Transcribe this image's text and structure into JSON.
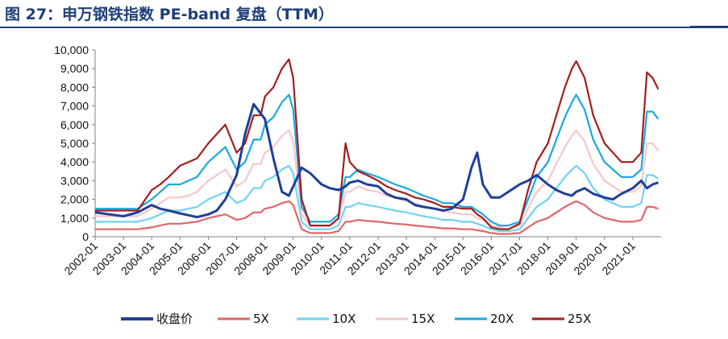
{
  "figure": {
    "title": "图 27：申万钢铁指数 PE-band 复盘（TTM）"
  },
  "chart_data": {
    "type": "line",
    "title": "图 27：申万钢铁指数 PE-band 复盘（TTM）",
    "xlabel": "",
    "ylabel": "",
    "ylim": [
      0,
      10000
    ],
    "yticks": [
      "0",
      "1,000",
      "2,000",
      "3,000",
      "4,000",
      "5,000",
      "6,000",
      "7,000",
      "8,000",
      "9,000",
      "10,000"
    ],
    "xticks": [
      "2002-01",
      "2003-01",
      "2004-01",
      "2005-01",
      "2006-01",
      "2007-01",
      "2008-01",
      "2009-01",
      "2010-01",
      "2011-01",
      "2012-01",
      "2013-01",
      "2014-01",
      "2015-01",
      "2016-01",
      "2017-01",
      "2018-01",
      "2019-01",
      "2020-01",
      "2021-01"
    ],
    "grid": false,
    "legend_position": "bottom",
    "x": [
      2002.0,
      2002.5,
      2003.0,
      2003.5,
      2004.0,
      2004.3,
      2004.6,
      2005.0,
      2005.3,
      2005.6,
      2006.0,
      2006.3,
      2006.6,
      2007.0,
      2007.3,
      2007.6,
      2007.85,
      2008.0,
      2008.3,
      2008.6,
      2008.85,
      2009.0,
      2009.3,
      2009.6,
      2010.0,
      2010.3,
      2010.6,
      2010.85,
      2011.0,
      2011.3,
      2011.6,
      2012.0,
      2012.3,
      2012.6,
      2013.0,
      2013.3,
      2013.6,
      2014.0,
      2014.3,
      2014.6,
      2015.0,
      2015.3,
      2015.5,
      2015.7,
      2016.0,
      2016.3,
      2016.6,
      2017.0,
      2017.3,
      2017.6,
      2018.0,
      2018.3,
      2018.6,
      2018.85,
      2019.0,
      2019.3,
      2019.6,
      2020.0,
      2020.3,
      2020.6,
      2021.0,
      2021.3,
      2021.5,
      2021.7,
      2021.9
    ],
    "series": [
      {
        "name": "收盘价",
        "color": "#1f3f99",
        "values": [
          1300,
          1200,
          1100,
          1300,
          1700,
          1500,
          1400,
          1250,
          1150,
          1050,
          1200,
          1400,
          2000,
          3300,
          5500,
          7100,
          6600,
          6300,
          4200,
          2400,
          2200,
          2700,
          3700,
          3400,
          2800,
          2600,
          2500,
          2700,
          2900,
          3000,
          2800,
          2700,
          2300,
          2100,
          2000,
          1700,
          1600,
          1500,
          1400,
          1500,
          2000,
          3700,
          4500,
          2800,
          2100,
          2100,
          2400,
          2800,
          3000,
          3300,
          2800,
          2500,
          2300,
          2200,
          2400,
          2600,
          2300,
          2100,
          2000,
          2300,
          2600,
          3000,
          2600,
          2800,
          2900
        ]
      },
      {
        "name": "5X",
        "color": "#e06666",
        "values": [
          400,
          400,
          400,
          400,
          500,
          600,
          700,
          700,
          750,
          800,
          1000,
          1100,
          1200,
          900,
          1000,
          1300,
          1300,
          1500,
          1600,
          1800,
          1900,
          1700,
          400,
          200,
          200,
          200,
          300,
          800,
          800,
          900,
          850,
          800,
          750,
          700,
          650,
          600,
          550,
          500,
          450,
          450,
          400,
          400,
          350,
          300,
          200,
          150,
          150,
          200,
          500,
          800,
          1000,
          1300,
          1600,
          1800,
          1900,
          1700,
          1300,
          1000,
          900,
          800,
          800,
          900,
          1600,
          1600,
          1500
        ]
      },
      {
        "name": "10X",
        "color": "#6fd3f2",
        "values": [
          800,
          800,
          800,
          800,
          1000,
          1200,
          1400,
          1400,
          1500,
          1600,
          2000,
          2200,
          2400,
          1800,
          2000,
          2600,
          2600,
          3000,
          3200,
          3600,
          3800,
          3400,
          800,
          400,
          400,
          400,
          600,
          1600,
          1600,
          1800,
          1700,
          1600,
          1500,
          1400,
          1300,
          1200,
          1100,
          1000,
          900,
          900,
          800,
          800,
          700,
          600,
          400,
          300,
          300,
          400,
          1000,
          1600,
          2000,
          2600,
          3200,
          3600,
          3800,
          3400,
          2600,
          2000,
          1800,
          1600,
          1600,
          1800,
          3300,
          3300,
          3100
        ]
      },
      {
        "name": "15X",
        "color": "#f6c7c7",
        "values": [
          1100,
          1100,
          1100,
          1100,
          1500,
          1800,
          2100,
          2100,
          2200,
          2400,
          3000,
          3300,
          3600,
          2700,
          3000,
          3900,
          3900,
          4500,
          4800,
          5400,
          5700,
          5100,
          1200,
          600,
          600,
          600,
          900,
          2400,
          2400,
          2700,
          2500,
          2400,
          2200,
          2100,
          1900,
          1800,
          1600,
          1500,
          1400,
          1300,
          1200,
          1200,
          1000,
          900,
          600,
          500,
          400,
          600,
          1500,
          2400,
          3000,
          3900,
          4800,
          5400,
          5700,
          5100,
          3900,
          3000,
          2700,
          2400,
          2400,
          2700,
          5000,
          5000,
          4600
        ]
      },
      {
        "name": "20X",
        "color": "#1aa8e0",
        "values": [
          1500,
          1500,
          1500,
          1500,
          2000,
          2400,
          2800,
          2800,
          3000,
          3200,
          4000,
          4400,
          4800,
          3600,
          4000,
          5200,
          5200,
          6000,
          6400,
          7200,
          7600,
          6800,
          1600,
          800,
          800,
          800,
          1200,
          3200,
          3200,
          3600,
          3400,
          3200,
          3000,
          2800,
          2600,
          2400,
          2200,
          2000,
          1800,
          1800,
          1600,
          1600,
          1400,
          1200,
          800,
          600,
          600,
          800,
          2000,
          3200,
          4000,
          5200,
          6400,
          7200,
          7600,
          6800,
          5200,
          4000,
          3600,
          3200,
          3200,
          3600,
          6700,
          6700,
          6300
        ]
      },
      {
        "name": "25X",
        "color": "#a31d1d",
        "values": [
          1400,
          1400,
          1400,
          1400,
          2500,
          2800,
          3200,
          3800,
          4000,
          4200,
          5000,
          5500,
          6000,
          4500,
          5000,
          6500,
          6500,
          7500,
          8000,
          9000,
          9500,
          8500,
          2000,
          600,
          600,
          600,
          1000,
          5000,
          4000,
          3500,
          3300,
          3000,
          2700,
          2500,
          2300,
          2100,
          2000,
          1800,
          1600,
          1600,
          1500,
          1500,
          1200,
          1000,
          500,
          400,
          400,
          700,
          2500,
          4000,
          5000,
          6500,
          8000,
          9000,
          9400,
          8500,
          6500,
          5000,
          4500,
          4000,
          4000,
          4500,
          8800,
          8500,
          7900
        ]
      }
    ]
  }
}
